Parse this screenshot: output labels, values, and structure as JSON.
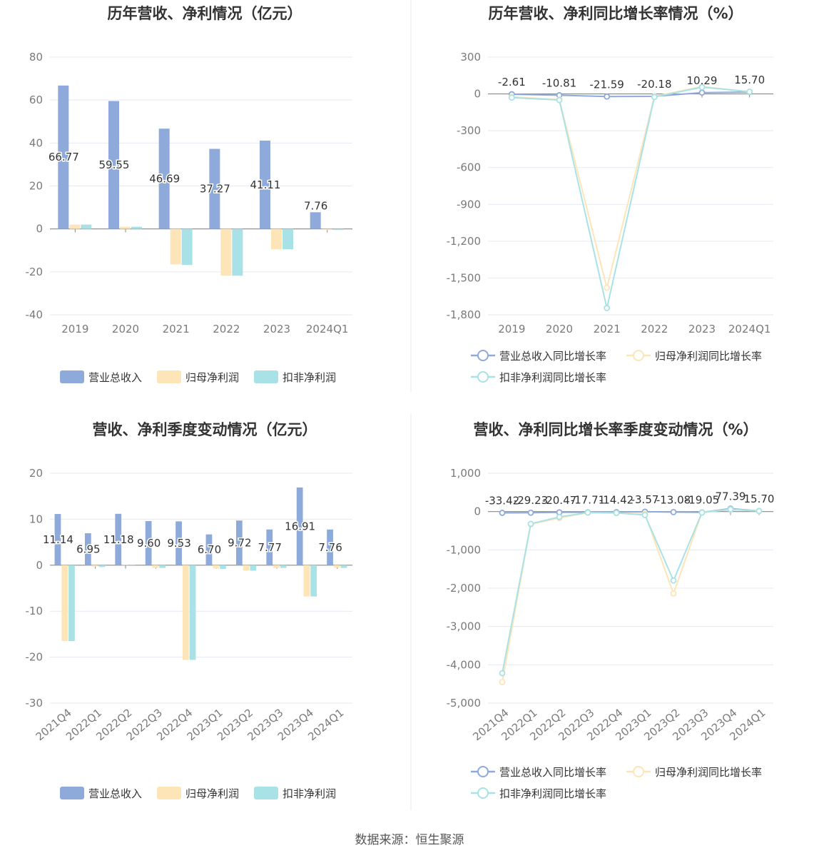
{
  "colors": {
    "revenue": "#8eaadb",
    "net": "#fde5b7",
    "deducted": "#a9e2e6",
    "grid": "#e6e9f2",
    "axis": "#888888",
    "text": "#333333",
    "tick": "#7a7a7a"
  },
  "chart_data": [
    {
      "type": "bar",
      "title": "历年营收、净利情况（亿元）",
      "categories": [
        "2019",
        "2020",
        "2021",
        "2022",
        "2023",
        "2024Q1"
      ],
      "ylim": [
        -40,
        80
      ],
      "yticks": [
        -40,
        -20,
        0,
        20,
        40,
        60,
        80
      ],
      "ytick_labels": [
        "-40",
        "-20",
        "0",
        "20",
        "40",
        "60",
        "80"
      ],
      "series": [
        {
          "name": "营业总收入",
          "values": [
            66.77,
            59.55,
            46.69,
            37.27,
            41.11,
            7.76
          ],
          "labels": [
            "66.77",
            "59.55",
            "46.69",
            "37.27",
            "41.11",
            "7.76"
          ]
        },
        {
          "name": "归母净利润",
          "values": [
            2.0,
            1.0,
            -16.5,
            -21.8,
            -9.5,
            -0.5
          ]
        },
        {
          "name": "扣非净利润",
          "values": [
            2.0,
            1.0,
            -16.8,
            -21.8,
            -9.5,
            -0.5
          ]
        }
      ],
      "legend": "bottom"
    },
    {
      "type": "line",
      "title": "历年营收、净利同比增长率情况（%）",
      "categories": [
        "2019",
        "2020",
        "2021",
        "2022",
        "2023",
        "2024Q1"
      ],
      "ylim": [
        -1800,
        300
      ],
      "yticks": [
        -1800,
        -1500,
        -1200,
        -900,
        -600,
        -300,
        0,
        300
      ],
      "ytick_labels": [
        "-1,800",
        "-1,500",
        "-1,200",
        "-900",
        "-600",
        "-300",
        "0",
        "300"
      ],
      "series": [
        {
          "name": "营业总收入同比增长率",
          "values": [
            -2.61,
            -10.81,
            -21.59,
            -20.18,
            10.29,
            15.7
          ],
          "labels": [
            "-2.61",
            "-10.81",
            "-21.59",
            "-20.18",
            "10.29",
            "15.70"
          ]
        },
        {
          "name": "归母净利润同比增长率",
          "values": [
            -25,
            -45,
            -1580,
            -20,
            60,
            18
          ]
        },
        {
          "name": "扣非净利润同比增长率",
          "values": [
            -30,
            -50,
            -1745,
            -25,
            55,
            18
          ]
        }
      ],
      "legend": "bottom"
    },
    {
      "type": "bar",
      "title": "营收、净利季度变动情况（亿元）",
      "categories": [
        "2021Q4",
        "2022Q1",
        "2022Q2",
        "2022Q3",
        "2022Q4",
        "2023Q1",
        "2023Q2",
        "2023Q3",
        "2023Q4",
        "2024Q1"
      ],
      "ylim": [
        -30,
        20
      ],
      "yticks": [
        -30,
        -20,
        -10,
        0,
        10,
        20
      ],
      "ytick_labels": [
        "-30",
        "-20",
        "-10",
        "0",
        "10",
        "20"
      ],
      "series": [
        {
          "name": "营业总收入",
          "values": [
            11.14,
            6.95,
            11.18,
            9.6,
            9.53,
            6.7,
            9.72,
            7.77,
            16.91,
            7.76
          ],
          "labels": [
            "11.14",
            "6.95",
            "11.18",
            "9.60",
            "9.53",
            "6.70",
            "9.72",
            "7.77",
            "16.91",
            "7.76"
          ]
        },
        {
          "name": "归母净利润",
          "values": [
            -16.5,
            -0.3,
            0.1,
            -0.6,
            -20.6,
            -0.7,
            -1.2,
            -0.6,
            -6.8,
            -0.5
          ]
        },
        {
          "name": "扣非净利润",
          "values": [
            -16.5,
            -0.4,
            0.1,
            -0.6,
            -20.6,
            -0.8,
            -1.2,
            -0.6,
            -6.8,
            -0.6
          ]
        }
      ],
      "legend": "bottom"
    },
    {
      "type": "line",
      "title": "营收、净利同比增长率季度变动情况（%）",
      "categories": [
        "2021Q4",
        "2022Q1",
        "2022Q2",
        "2022Q3",
        "2022Q4",
        "2023Q1",
        "2023Q2",
        "2023Q3",
        "2023Q4",
        "2024Q1"
      ],
      "ylim": [
        -5000,
        1000
      ],
      "yticks": [
        -5000,
        -4000,
        -3000,
        -2000,
        -1000,
        0,
        1000
      ],
      "ytick_labels": [
        "-5,000",
        "-4,000",
        "-3,000",
        "-2,000",
        "-1,000",
        "0",
        "1,000"
      ],
      "series": [
        {
          "name": "营业总收入同比增长率",
          "values": [
            -33.42,
            -29.23,
            -20.47,
            -17.71,
            -14.42,
            -3.57,
            -13.08,
            -19.05,
            77.39,
            15.7
          ],
          "labels": [
            "-33.42",
            "-29.23",
            "-20.47",
            "-17.71",
            "-14.42",
            "-3.57",
            "-13.08",
            "-19.05",
            "77.39",
            "15.70"
          ]
        },
        {
          "name": "归母净利润同比增长率",
          "values": [
            -4450,
            -330,
            -170,
            -30,
            -40,
            -60,
            -2140,
            -20,
            60,
            15
          ]
        },
        {
          "name": "扣非净利润同比增长率",
          "values": [
            -4220,
            -320,
            -140,
            -25,
            -35,
            -90,
            -1800,
            -25,
            55,
            15
          ]
        }
      ],
      "legend": "bottom"
    }
  ],
  "footer": {
    "source": "数据来源：恒生聚源"
  }
}
